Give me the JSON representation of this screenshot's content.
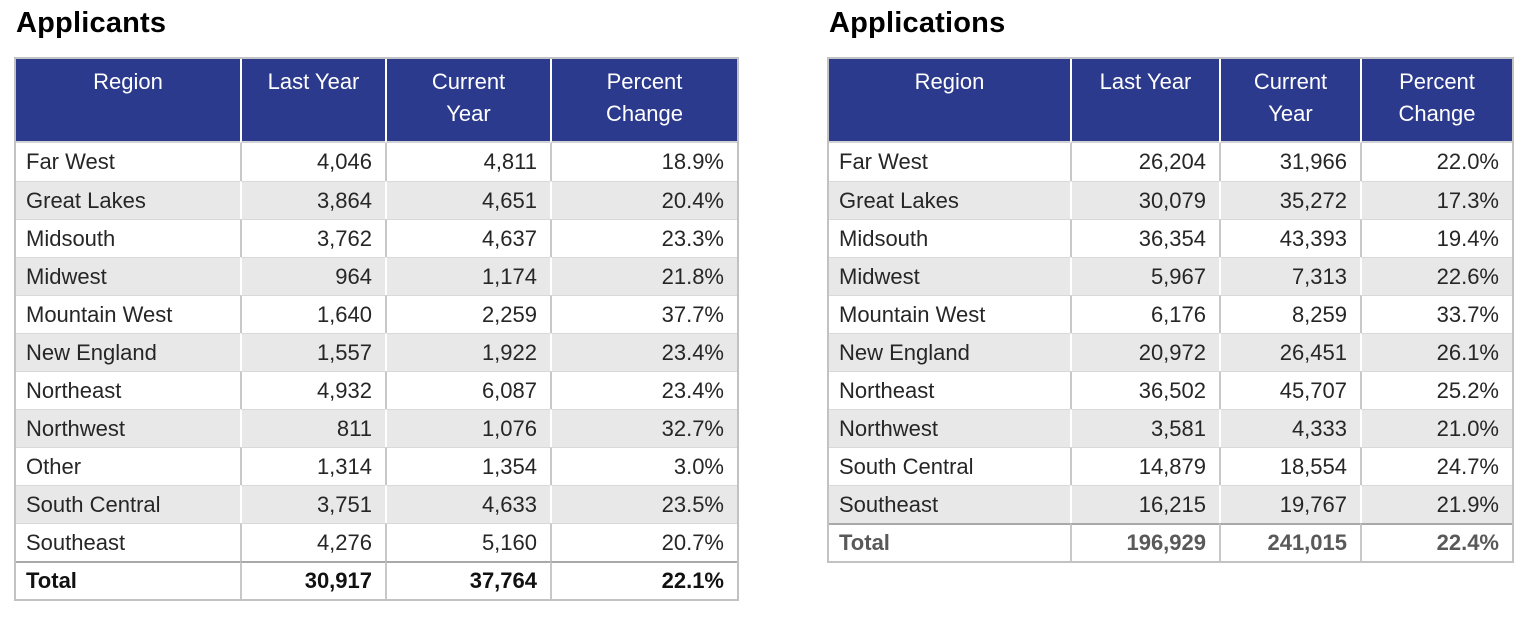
{
  "colors": {
    "page-bg": "#ffffff",
    "header-bg": "#2b3a8d",
    "header-text": "#ffffff",
    "stripe-bg": "#e8e8e8",
    "row-bg": "#ffffff",
    "cell-text": "#262626",
    "row-line": "#d9d9d9",
    "column-line": "#c8c8c8",
    "table-border": "#c2c2c2",
    "total-line": "#a9a9a9"
  },
  "tables": [
    {
      "title": "Applicants",
      "columns": [
        "Region",
        "Last Year",
        "Current\nYear",
        "Percent\nChange"
      ],
      "rows": [
        [
          "Far West",
          "4,046",
          "4,811",
          "18.9%"
        ],
        [
          "Great Lakes",
          "3,864",
          "4,651",
          "20.4%"
        ],
        [
          "Midsouth",
          "3,762",
          "4,637",
          "23.3%"
        ],
        [
          "Midwest",
          "964",
          "1,174",
          "21.8%"
        ],
        [
          "Mountain West",
          "1,640",
          "2,259",
          "37.7%"
        ],
        [
          "New England",
          "1,557",
          "1,922",
          "23.4%"
        ],
        [
          "Northeast",
          "4,932",
          "6,087",
          "23.4%"
        ],
        [
          "Northwest",
          "811",
          "1,076",
          "32.7%"
        ],
        [
          "Other",
          "1,314",
          "1,354",
          "3.0%"
        ],
        [
          "South Central",
          "3,751",
          "4,633",
          "23.5%"
        ],
        [
          "Southeast",
          "4,276",
          "5,160",
          "20.7%"
        ]
      ],
      "total": [
        "Total",
        "30,917",
        "37,764",
        "22.1%"
      ],
      "total_color": "#111111"
    },
    {
      "title": "Applications",
      "columns": [
        "Region",
        "Last Year",
        "Current\nYear",
        "Percent\nChange"
      ],
      "rows": [
        [
          "Far West",
          "26,204",
          "31,966",
          "22.0%"
        ],
        [
          "Great Lakes",
          "30,079",
          "35,272",
          "17.3%"
        ],
        [
          "Midsouth",
          "36,354",
          "43,393",
          "19.4%"
        ],
        [
          "Midwest",
          "5,967",
          "7,313",
          "22.6%"
        ],
        [
          "Mountain West",
          "6,176",
          "8,259",
          "33.7%"
        ],
        [
          "New England",
          "20,972",
          "26,451",
          "26.1%"
        ],
        [
          "Northeast",
          "36,502",
          "45,707",
          "25.2%"
        ],
        [
          "Northwest",
          "3,581",
          "4,333",
          "21.0%"
        ],
        [
          "South Central",
          "14,879",
          "18,554",
          "24.7%"
        ],
        [
          "Southeast",
          "16,215",
          "19,767",
          "21.9%"
        ]
      ],
      "total": [
        "Total",
        "196,929",
        "241,015",
        "22.4%"
      ],
      "total_color": "#595959"
    }
  ]
}
